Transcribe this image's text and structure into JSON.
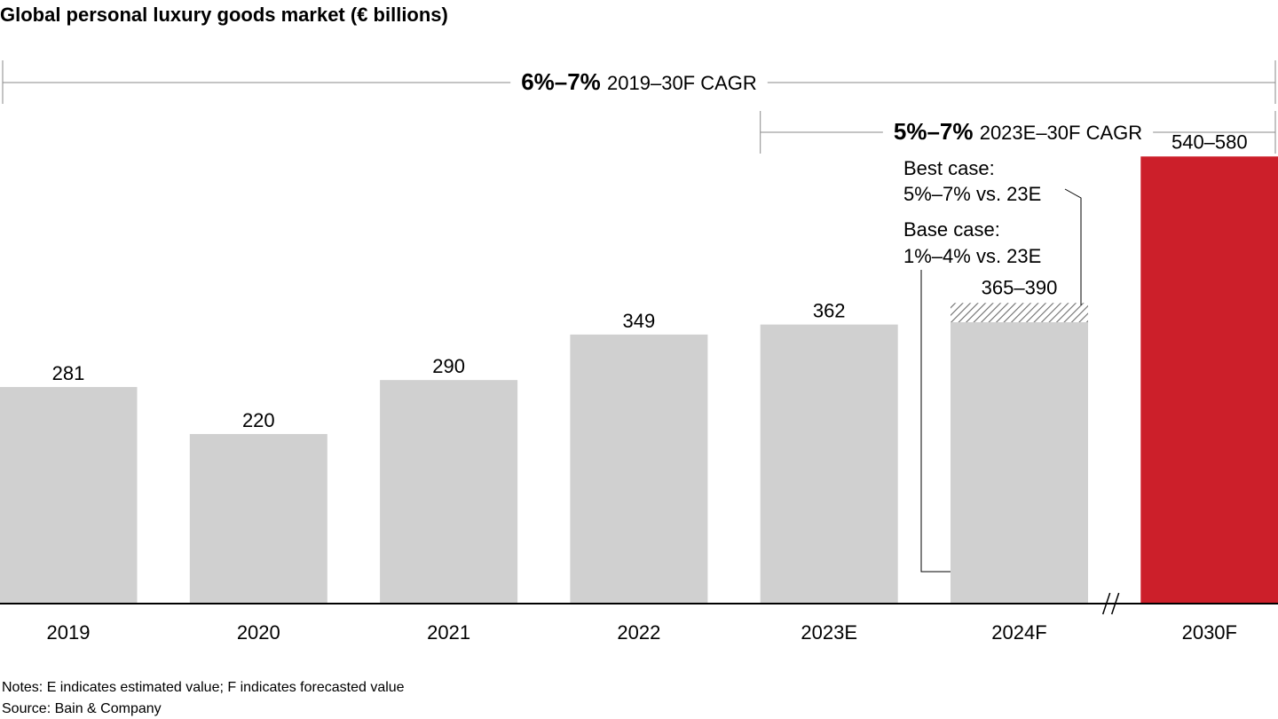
{
  "chart_data": {
    "type": "bar",
    "title": "Global personal luxury goods market (€ billions)",
    "categories": [
      "2019",
      "2020",
      "2021",
      "2022",
      "2023E",
      "2024F",
      "2030F"
    ],
    "values": [
      281,
      220,
      290,
      349,
      362,
      null,
      null
    ],
    "value_labels": [
      "281",
      "220",
      "290",
      "349",
      "362",
      "365–390",
      "540–580"
    ],
    "ranges": [
      null,
      null,
      null,
      null,
      null,
      [
        365,
        390
      ],
      [
        540,
        580
      ]
    ],
    "colors": [
      "#d0d0d0",
      "#d0d0d0",
      "#d0d0d0",
      "#d0d0d0",
      "#d0d0d0",
      "#d0d0d0",
      "#cc1f2a"
    ],
    "axis_break_before": "2030F",
    "cagr_brackets": [
      {
        "bold": "6%–7%",
        "text": "2019–30F CAGR",
        "from": "2019",
        "to": "2030F"
      },
      {
        "bold": "5%–7%",
        "text": "2023E–30F CAGR",
        "from": "2023E",
        "to": "2030F"
      }
    ],
    "annotations": [
      {
        "target": "2024F",
        "case": "best",
        "line1": "Best case:",
        "line2": "5%–7% vs. 23E"
      },
      {
        "target": "2024F",
        "case": "base",
        "line1": "Base case:",
        "line2": "1%–4% vs. 23E"
      }
    ]
  },
  "footer": {
    "notes": "Notes: E indicates estimated value; F indicates forecasted value",
    "source": "Source: Bain & Company"
  }
}
